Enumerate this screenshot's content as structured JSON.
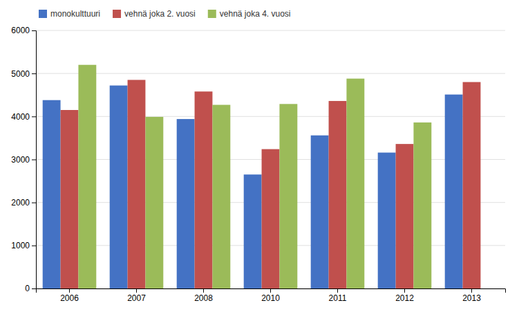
{
  "chart_data": {
    "type": "bar",
    "categories": [
      "2006",
      "2007",
      "2008",
      "2010",
      "2011",
      "2012",
      "2013"
    ],
    "series": [
      {
        "name": "monokulttuuri",
        "color": "#4472C4",
        "values": [
          4380,
          4720,
          3940,
          2650,
          3560,
          3160,
          4510
        ]
      },
      {
        "name": "vehnä joka 2. vuosi",
        "color": "#C0504D",
        "values": [
          4150,
          4850,
          4580,
          3240,
          4360,
          3360,
          4800
        ]
      },
      {
        "name": "vehnä joka 4. vuosi",
        "color": "#9BBB59",
        "values": [
          5200,
          3990,
          4270,
          4290,
          4880,
          3860,
          null
        ]
      }
    ],
    "ylim": [
      0,
      6000
    ],
    "yticks": [
      0,
      1000,
      2000,
      3000,
      4000,
      5000,
      6000
    ],
    "grid": true,
    "legend": "upper left"
  }
}
